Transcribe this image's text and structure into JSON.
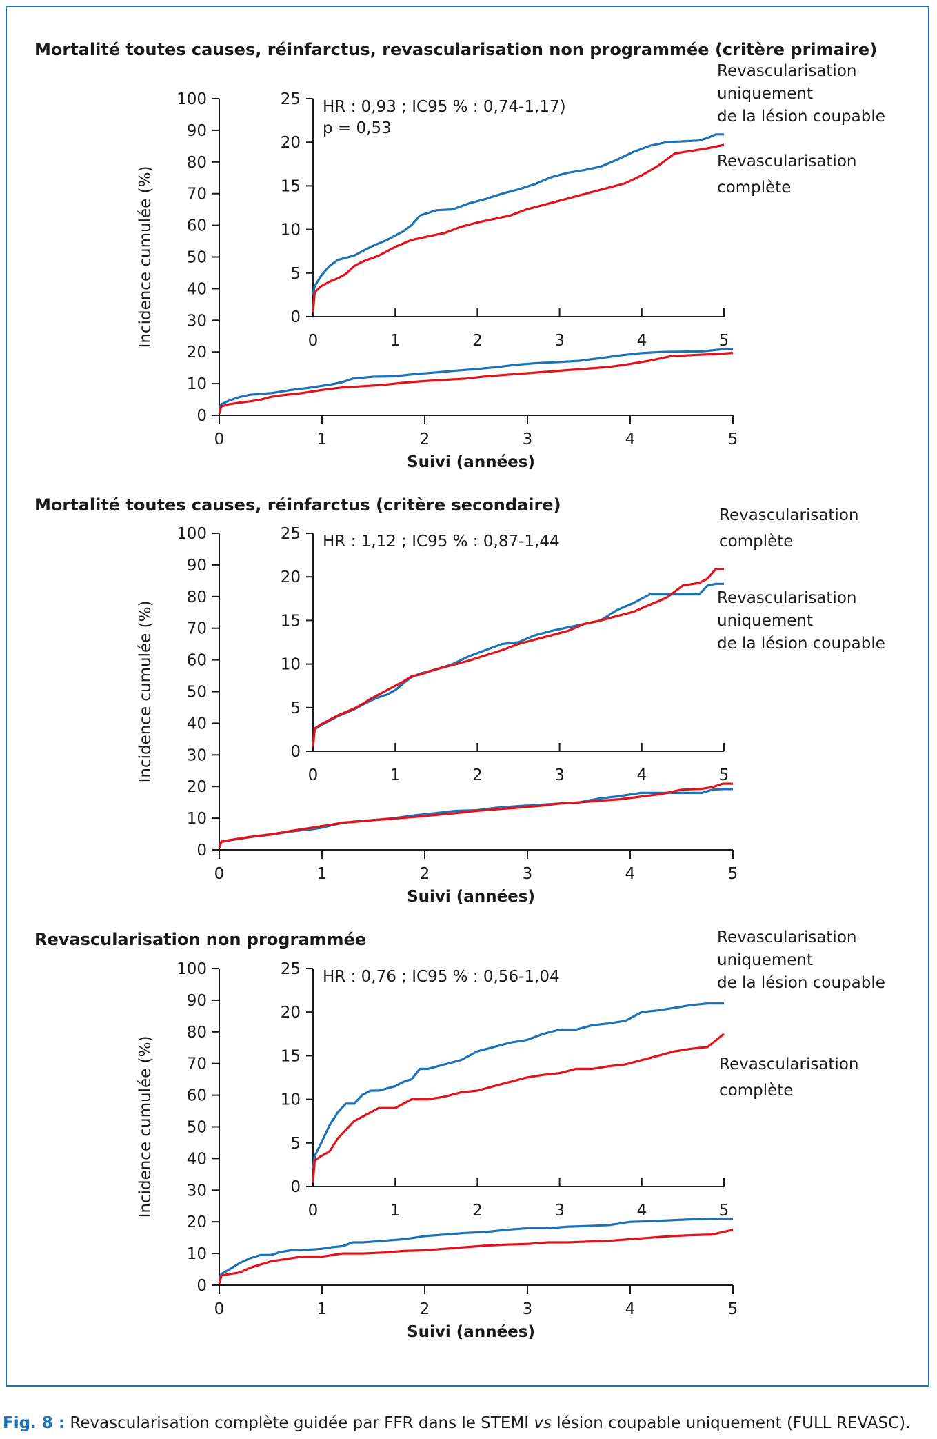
{
  "caption": {
    "label": "Fig. 8 :",
    "text": " Revascularisation complète guidée par FFR dans le STEMI ",
    "vs": "vs",
    "rest": " lésion coupable uniquement (FULL REVASC)."
  },
  "colors": {
    "culprit_only": "#1e73b8",
    "complete": "#e3131b",
    "axis": "#1a1a1a",
    "frame": "#1e73b8"
  },
  "chart_data": [
    {
      "type": "line",
      "title": "Mortalité toutes causes, réinfarctus, revascularisation non programmée (critère primaire)",
      "xlabel": "Suivi (années)",
      "ylabel": "Incidence cumulée (%)",
      "xlim": [
        0,
        5
      ],
      "ylim": [
        0,
        100
      ],
      "x_ticks": [
        "0",
        "1",
        "2",
        "3",
        "4",
        "5"
      ],
      "y_ticks": [
        "0",
        "10",
        "20",
        "30",
        "40",
        "50",
        "60",
        "70",
        "80",
        "90",
        "100"
      ],
      "inset": {
        "xlim": [
          0,
          5
        ],
        "ylim": [
          0,
          25
        ],
        "x_ticks": [
          "0",
          "1",
          "2",
          "3",
          "4",
          "5"
        ],
        "y_ticks": [
          "0",
          "5",
          "10",
          "15",
          "20",
          "25"
        ],
        "annotation": [
          "HR : 0,93 ; IC95 % : 0,74-1,17)",
          "p = 0,53"
        ]
      },
      "legend_labels": [
        {
          "series": "culprit_only",
          "lines": [
            "Revascularisation",
            "uniquement",
            "de la lésion coupable"
          ]
        },
        {
          "series": "complete",
          "lines": [
            "Revascularisation",
            "complète"
          ]
        }
      ],
      "series": [
        {
          "key": "culprit_only",
          "x": [
            0,
            0.02,
            0.1,
            0.2,
            0.3,
            0.5,
            0.7,
            0.9,
            1.1,
            1.2,
            1.3,
            1.5,
            1.7,
            1.9,
            2.1,
            2.3,
            2.5,
            2.7,
            2.9,
            3.1,
            3.3,
            3.5,
            3.7,
            3.9,
            4.1,
            4.3,
            4.5,
            4.7,
            4.8,
            4.9,
            5.0
          ],
          "y": [
            2.5,
            3.5,
            4.7,
            5.8,
            6.5,
            7.0,
            8.0,
            8.8,
            9.8,
            10.5,
            11.6,
            12.2,
            12.3,
            13.0,
            13.5,
            14.1,
            14.6,
            15.2,
            16.0,
            16.5,
            16.8,
            17.2,
            18.0,
            18.9,
            19.6,
            20.0,
            20.1,
            20.2,
            20.5,
            20.9,
            20.9
          ]
        },
        {
          "key": "complete",
          "x": [
            0,
            0.02,
            0.1,
            0.2,
            0.3,
            0.4,
            0.5,
            0.6,
            0.8,
            1.0,
            1.2,
            1.4,
            1.6,
            1.8,
            2.0,
            2.2,
            2.4,
            2.6,
            2.8,
            3.0,
            3.2,
            3.4,
            3.6,
            3.8,
            4.0,
            4.2,
            4.4,
            4.6,
            4.8,
            5.0
          ],
          "y": [
            0.5,
            2.8,
            3.5,
            4.0,
            4.4,
            4.9,
            5.8,
            6.3,
            7.0,
            8.0,
            8.8,
            9.2,
            9.6,
            10.3,
            10.8,
            11.2,
            11.6,
            12.3,
            12.8,
            13.3,
            13.8,
            14.3,
            14.8,
            15.3,
            16.2,
            17.3,
            18.7,
            19.0,
            19.3,
            19.7
          ]
        }
      ]
    },
    {
      "type": "line",
      "title": "Mortalité toutes causes, réinfarctus (critère secondaire)",
      "xlabel": "Suivi (années)",
      "ylabel": "Incidence cumulée (%)",
      "xlim": [
        0,
        5
      ],
      "ylim": [
        0,
        100
      ],
      "x_ticks": [
        "0",
        "1",
        "2",
        "3",
        "4",
        "5"
      ],
      "y_ticks": [
        "0",
        "10",
        "20",
        "30",
        "40",
        "50",
        "60",
        "70",
        "80",
        "90",
        "100"
      ],
      "inset": {
        "xlim": [
          0,
          5
        ],
        "ylim": [
          0,
          25
        ],
        "x_ticks": [
          "0",
          "1",
          "2",
          "3",
          "4",
          "5"
        ],
        "y_ticks": [
          "0",
          "5",
          "10",
          "15",
          "20",
          "25"
        ],
        "annotation": [
          "HR : 1,12 ; IC95 % : 0,87-1,44"
        ]
      },
      "legend_labels": [
        {
          "series": "complete",
          "lines": [
            "Revascularisation",
            "complète"
          ]
        },
        {
          "series": "culprit_only",
          "lines": [
            "Revascularisation",
            "uniquement",
            "de la lésion coupable"
          ]
        }
      ],
      "series": [
        {
          "key": "culprit_only",
          "x": [
            0,
            0.02,
            0.1,
            0.2,
            0.3,
            0.4,
            0.5,
            0.6,
            0.7,
            0.8,
            0.9,
            1.0,
            1.1,
            1.2,
            1.3,
            1.5,
            1.7,
            1.9,
            2.1,
            2.3,
            2.5,
            2.7,
            2.9,
            3.1,
            3.3,
            3.5,
            3.7,
            3.9,
            4.1,
            4.3,
            4.5,
            4.7,
            4.8,
            4.9,
            5.0
          ],
          "y": [
            0.5,
            2.5,
            3.0,
            3.5,
            4.0,
            4.4,
            4.8,
            5.3,
            5.8,
            6.2,
            6.5,
            7.0,
            7.8,
            8.5,
            8.9,
            9.4,
            10.0,
            10.9,
            11.6,
            12.3,
            12.5,
            13.3,
            13.8,
            14.2,
            14.6,
            15.0,
            16.2,
            17.0,
            18.0,
            18.0,
            18.0,
            18.0,
            19.0,
            19.2,
            19.2
          ]
        },
        {
          "key": "complete",
          "x": [
            0,
            0.02,
            0.1,
            0.2,
            0.3,
            0.4,
            0.5,
            0.6,
            0.7,
            0.8,
            0.9,
            1.0,
            1.1,
            1.2,
            1.3,
            1.5,
            1.7,
            1.9,
            2.1,
            2.3,
            2.5,
            2.7,
            2.9,
            3.1,
            3.3,
            3.5,
            3.7,
            3.9,
            4.1,
            4.3,
            4.5,
            4.7,
            4.8,
            4.9,
            5.0
          ],
          "y": [
            0.5,
            2.6,
            3.1,
            3.6,
            4.1,
            4.5,
            4.9,
            5.4,
            6.0,
            6.5,
            7.0,
            7.5,
            8.0,
            8.6,
            8.8,
            9.4,
            9.9,
            10.4,
            11.0,
            11.6,
            12.3,
            12.8,
            13.3,
            13.8,
            14.6,
            15.0,
            15.5,
            16.0,
            16.8,
            17.6,
            19.0,
            19.3,
            19.8,
            20.9,
            20.9
          ]
        }
      ]
    },
    {
      "type": "line",
      "title": "Revascularisation non programmée",
      "xlabel": "Suivi (années)",
      "ylabel": "Incidence cumulée (%)",
      "xlim": [
        0,
        5
      ],
      "ylim": [
        0,
        100
      ],
      "x_ticks": [
        "0",
        "1",
        "2",
        "3",
        "4",
        "5"
      ],
      "y_ticks": [
        "0",
        "10",
        "20",
        "30",
        "40",
        "50",
        "60",
        "70",
        "80",
        "90",
        "100"
      ],
      "inset": {
        "xlim": [
          0,
          5
        ],
        "ylim": [
          0,
          25
        ],
        "x_ticks": [
          "0",
          "1",
          "2",
          "3",
          "4",
          "5"
        ],
        "y_ticks": [
          "0",
          "5",
          "10",
          "15",
          "20",
          "25"
        ],
        "annotation": [
          "HR : 0,76 ; IC95 % : 0,56-1,04"
        ]
      },
      "legend_labels": [
        {
          "series": "culprit_only",
          "lines": [
            "Revascularisation",
            "uniquement",
            "de la lésion coupable"
          ]
        },
        {
          "series": "complete",
          "lines": [
            "Revascularisation",
            "complète"
          ]
        }
      ],
      "series": [
        {
          "key": "culprit_only",
          "x": [
            0,
            0.02,
            0.1,
            0.2,
            0.3,
            0.4,
            0.5,
            0.6,
            0.7,
            0.8,
            1.0,
            1.1,
            1.2,
            1.3,
            1.4,
            1.6,
            1.8,
            2.0,
            2.2,
            2.4,
            2.6,
            2.8,
            3.0,
            3.2,
            3.4,
            3.6,
            3.8,
            4.0,
            4.2,
            4.4,
            4.6,
            4.8,
            5.0
          ],
          "y": [
            2.0,
            3.5,
            5.0,
            7.0,
            8.5,
            9.5,
            9.5,
            10.5,
            11.0,
            11.0,
            11.5,
            12.0,
            12.3,
            13.5,
            13.5,
            14.0,
            14.5,
            15.5,
            16.0,
            16.5,
            16.8,
            17.5,
            18.0,
            18.0,
            18.5,
            18.7,
            19.0,
            20.0,
            20.2,
            20.5,
            20.8,
            21.0,
            21.0
          ]
        },
        {
          "key": "complete",
          "x": [
            0,
            0.02,
            0.1,
            0.2,
            0.3,
            0.4,
            0.5,
            0.6,
            0.7,
            0.8,
            1.0,
            1.1,
            1.2,
            1.4,
            1.6,
            1.8,
            2.0,
            2.2,
            2.4,
            2.6,
            2.8,
            3.0,
            3.2,
            3.4,
            3.6,
            3.8,
            4.0,
            4.2,
            4.4,
            4.6,
            4.8,
            5.0
          ],
          "y": [
            0.5,
            3.0,
            3.5,
            4.0,
            5.5,
            6.5,
            7.5,
            8.0,
            8.5,
            9.0,
            9.0,
            9.5,
            10.0,
            10.0,
            10.3,
            10.8,
            11.0,
            11.5,
            12.0,
            12.5,
            12.8,
            13.0,
            13.5,
            13.5,
            13.8,
            14.0,
            14.5,
            15.0,
            15.5,
            15.8,
            16.0,
            17.5
          ]
        }
      ]
    }
  ]
}
